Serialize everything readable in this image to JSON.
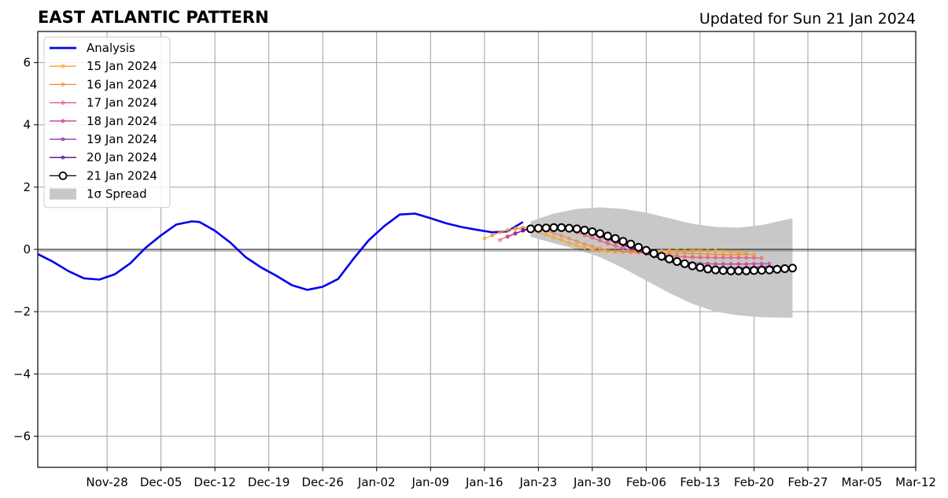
{
  "chart_data": {
    "type": "line",
    "title": "EAST ATLANTIC PATTERN",
    "subtitle": "Updated for Sun 21 Jan 2024",
    "xlabel": "",
    "ylabel": "",
    "x_range": [
      "2023-11-19",
      "2024-03-12"
    ],
    "ylim": [
      -7,
      7
    ],
    "y_ticks": [
      -6,
      -4,
      -2,
      0,
      2,
      4,
      6
    ],
    "y_tick_labels": [
      "−6",
      "−4",
      "−2",
      "0",
      "2",
      "4",
      "6"
    ],
    "x_ticks": [
      "2023-11-28",
      "2023-12-05",
      "2023-12-12",
      "2023-12-19",
      "2023-12-26",
      "2024-01-02",
      "2024-01-09",
      "2024-01-16",
      "2024-01-23",
      "2024-01-30",
      "2024-02-06",
      "2024-02-13",
      "2024-02-20",
      "2024-02-27",
      "2024-03-05",
      "2024-03-12"
    ],
    "x_tick_labels": [
      "Nov-28",
      "Dec-05",
      "Dec-12",
      "Dec-19",
      "Dec-26",
      "Jan-02",
      "Jan-09",
      "Jan-16",
      "Jan-23",
      "Jan-30",
      "Feb-06",
      "Feb-13",
      "Feb-20",
      "Feb-27",
      "Mar-05",
      "Mar-12"
    ],
    "grid": true,
    "zero_line": true,
    "legend_position": "upper-left",
    "series": [
      {
        "name": "Analysis",
        "color": "#0000ee",
        "x": [
          "2023-11-19",
          "2023-11-21",
          "2023-11-23",
          "2023-11-25",
          "2023-11-27",
          "2023-11-29",
          "2023-12-01",
          "2023-12-03",
          "2023-12-05",
          "2023-12-07",
          "2023-12-09",
          "2023-12-10",
          "2023-12-12",
          "2023-12-14",
          "2023-12-16",
          "2023-12-18",
          "2023-12-20",
          "2023-12-22",
          "2023-12-24",
          "2023-12-26",
          "2023-12-28",
          "2023-12-30",
          "2024-01-01",
          "2024-01-03",
          "2024-01-05",
          "2024-01-07",
          "2024-01-09",
          "2024-01-11",
          "2024-01-13",
          "2024-01-15",
          "2024-01-17",
          "2024-01-19",
          "2024-01-21"
        ],
        "y": [
          -0.15,
          -0.4,
          -0.7,
          -0.93,
          -0.97,
          -0.8,
          -0.45,
          0.05,
          0.45,
          0.8,
          0.9,
          0.88,
          0.6,
          0.22,
          -0.25,
          -0.58,
          -0.85,
          -1.15,
          -1.3,
          -1.2,
          -0.95,
          -0.3,
          0.3,
          0.75,
          1.12,
          1.15,
          1.0,
          0.84,
          0.72,
          0.63,
          0.55,
          0.58,
          0.88
        ]
      },
      {
        "name": "15 Jan 2024",
        "color": "#f6a623",
        "x": [
          "2024-01-16",
          "2024-01-17",
          "2024-01-18",
          "2024-01-19",
          "2024-01-20",
          "2024-01-21",
          "2024-01-22",
          "2024-01-23",
          "2024-01-24",
          "2024-01-25",
          "2024-01-26",
          "2024-01-27",
          "2024-01-28",
          "2024-01-29",
          "2024-01-30",
          "2024-01-31",
          "2024-02-01",
          "2024-02-02",
          "2024-02-03",
          "2024-02-04",
          "2024-02-05",
          "2024-02-06",
          "2024-02-07",
          "2024-02-08",
          "2024-02-09",
          "2024-02-10",
          "2024-02-11",
          "2024-02-12",
          "2024-02-13",
          "2024-02-14",
          "2024-02-15",
          "2024-02-16",
          "2024-02-17",
          "2024-02-18",
          "2024-02-19"
        ],
        "y": [
          0.35,
          0.45,
          0.55,
          0.62,
          0.66,
          0.66,
          0.62,
          0.55,
          0.47,
          0.38,
          0.3,
          0.2,
          0.12,
          0.05,
          0.0,
          -0.04,
          -0.06,
          -0.07,
          -0.08,
          -0.08,
          -0.08,
          -0.07,
          -0.06,
          -0.05,
          -0.04,
          -0.03,
          -0.03,
          -0.02,
          -0.02,
          -0.03,
          -0.04,
          -0.06,
          -0.08,
          -0.1,
          -0.12
        ]
      },
      {
        "name": "16 Jan 2024",
        "color": "#f08a3c",
        "x": [
          "2024-01-17",
          "2024-01-18",
          "2024-01-19",
          "2024-01-20",
          "2024-01-21",
          "2024-01-22",
          "2024-01-23",
          "2024-01-24",
          "2024-01-25",
          "2024-01-26",
          "2024-01-27",
          "2024-01-28",
          "2024-01-29",
          "2024-01-30",
          "2024-01-31",
          "2024-02-01",
          "2024-02-02",
          "2024-02-03",
          "2024-02-04",
          "2024-02-05",
          "2024-02-06",
          "2024-02-07",
          "2024-02-08",
          "2024-02-09",
          "2024-02-10",
          "2024-02-11",
          "2024-02-12",
          "2024-02-13",
          "2024-02-14",
          "2024-02-15",
          "2024-02-16",
          "2024-02-17",
          "2024-02-18",
          "2024-02-19",
          "2024-02-20"
        ],
        "y": [
          0.45,
          0.55,
          0.62,
          0.67,
          0.7,
          0.7,
          0.66,
          0.6,
          0.52,
          0.44,
          0.35,
          0.26,
          0.17,
          0.1,
          0.03,
          -0.02,
          -0.06,
          -0.08,
          -0.1,
          -0.11,
          -0.12,
          -0.12,
          -0.12,
          -0.12,
          -0.12,
          -0.12,
          -0.13,
          -0.14,
          -0.15,
          -0.16,
          -0.17,
          -0.17,
          -0.17,
          -0.16,
          -0.16
        ]
      },
      {
        "name": "17 Jan 2024",
        "color": "#e8546a",
        "x": [
          "2024-01-18",
          "2024-01-19",
          "2024-01-20",
          "2024-01-21",
          "2024-01-22",
          "2024-01-23",
          "2024-01-24",
          "2024-01-25",
          "2024-01-26",
          "2024-01-27",
          "2024-01-28",
          "2024-01-29",
          "2024-01-30",
          "2024-01-31",
          "2024-02-01",
          "2024-02-02",
          "2024-02-03",
          "2024-02-04",
          "2024-02-05",
          "2024-02-06",
          "2024-02-07",
          "2024-02-08",
          "2024-02-09",
          "2024-02-10",
          "2024-02-11",
          "2024-02-12",
          "2024-02-13",
          "2024-02-14",
          "2024-02-15",
          "2024-02-16",
          "2024-02-17",
          "2024-02-18",
          "2024-02-19",
          "2024-02-20",
          "2024-02-21"
        ],
        "y": [
          0.3,
          0.42,
          0.52,
          0.6,
          0.66,
          0.7,
          0.72,
          0.72,
          0.68,
          0.62,
          0.55,
          0.46,
          0.37,
          0.28,
          0.19,
          0.11,
          0.04,
          -0.02,
          -0.07,
          -0.11,
          -0.15,
          -0.18,
          -0.2,
          -0.22,
          -0.24,
          -0.25,
          -0.26,
          -0.26,
          -0.27,
          -0.27,
          -0.27,
          -0.27,
          -0.27,
          -0.27,
          -0.28
        ]
      },
      {
        "name": "18 Jan 2024",
        "color": "#c73a8c",
        "x": [
          "2024-01-19",
          "2024-01-20",
          "2024-01-21",
          "2024-01-22",
          "2024-01-23",
          "2024-01-24",
          "2024-01-25",
          "2024-01-26",
          "2024-01-27",
          "2024-01-28",
          "2024-01-29",
          "2024-01-30",
          "2024-01-31",
          "2024-02-01",
          "2024-02-02",
          "2024-02-03",
          "2024-02-04",
          "2024-02-05",
          "2024-02-06",
          "2024-02-07",
          "2024-02-08",
          "2024-02-09",
          "2024-02-10",
          "2024-02-11",
          "2024-02-12",
          "2024-02-13",
          "2024-02-14",
          "2024-02-15",
          "2024-02-16",
          "2024-02-17",
          "2024-02-18",
          "2024-02-19",
          "2024-02-20",
          "2024-02-21",
          "2024-02-22"
        ],
        "y": [
          0.4,
          0.5,
          0.6,
          0.67,
          0.72,
          0.75,
          0.76,
          0.74,
          0.7,
          0.64,
          0.57,
          0.49,
          0.4,
          0.31,
          0.22,
          0.13,
          0.05,
          -0.03,
          -0.11,
          -0.18,
          -0.25,
          -0.31,
          -0.36,
          -0.4,
          -0.43,
          -0.45,
          -0.46,
          -0.47,
          -0.47,
          -0.47,
          -0.47,
          -0.47,
          -0.46,
          -0.46,
          -0.46
        ]
      },
      {
        "name": "19 Jan 2024",
        "color": "#8b1fa3",
        "x": [
          "2024-01-20",
          "2024-01-21",
          "2024-01-22",
          "2024-01-23",
          "2024-01-24",
          "2024-01-25",
          "2024-01-26",
          "2024-01-27",
          "2024-01-28",
          "2024-01-29",
          "2024-01-30",
          "2024-01-31",
          "2024-02-01",
          "2024-02-02",
          "2024-02-03",
          "2024-02-04",
          "2024-02-05",
          "2024-02-06",
          "2024-02-07",
          "2024-02-08",
          "2024-02-09",
          "2024-02-10",
          "2024-02-11",
          "2024-02-12",
          "2024-02-13",
          "2024-02-14",
          "2024-02-15",
          "2024-02-16",
          "2024-02-17",
          "2024-02-18",
          "2024-02-19",
          "2024-02-20",
          "2024-02-21",
          "2024-02-22",
          "2024-02-23"
        ],
        "y": [
          0.52,
          0.6,
          0.66,
          0.71,
          0.74,
          0.75,
          0.74,
          0.71,
          0.66,
          0.6,
          0.53,
          0.45,
          0.36,
          0.27,
          0.18,
          0.09,
          0.0,
          -0.09,
          -0.17,
          -0.25,
          -0.32,
          -0.38,
          -0.44,
          -0.49,
          -0.53,
          -0.56,
          -0.58,
          -0.59,
          -0.59,
          -0.59,
          -0.58,
          -0.57,
          -0.56,
          -0.55,
          -0.55
        ]
      },
      {
        "name": "20 Jan 2024",
        "color": "#4b0c82",
        "x": [
          "2024-01-21",
          "2024-01-22",
          "2024-01-23",
          "2024-01-24",
          "2024-01-25",
          "2024-01-26",
          "2024-01-27",
          "2024-01-28",
          "2024-01-29",
          "2024-01-30",
          "2024-01-31",
          "2024-02-01",
          "2024-02-02",
          "2024-02-03",
          "2024-02-04",
          "2024-02-05",
          "2024-02-06",
          "2024-02-07",
          "2024-02-08",
          "2024-02-09",
          "2024-02-10",
          "2024-02-11",
          "2024-02-12",
          "2024-02-13",
          "2024-02-14",
          "2024-02-15",
          "2024-02-16",
          "2024-02-17",
          "2024-02-18",
          "2024-02-19",
          "2024-02-20",
          "2024-02-21",
          "2024-02-22",
          "2024-02-23",
          "2024-02-24"
        ],
        "y": [
          0.62,
          0.66,
          0.7,
          0.72,
          0.73,
          0.72,
          0.69,
          0.65,
          0.59,
          0.52,
          0.44,
          0.35,
          0.26,
          0.16,
          0.06,
          -0.04,
          -0.14,
          -0.23,
          -0.31,
          -0.39,
          -0.46,
          -0.52,
          -0.57,
          -0.61,
          -0.64,
          -0.66,
          -0.67,
          -0.67,
          -0.67,
          -0.66,
          -0.65,
          -0.64,
          -0.63,
          -0.62,
          -0.61
        ]
      },
      {
        "name": "21 Jan 2024",
        "color": "#000000",
        "x": [
          "2024-01-22",
          "2024-01-23",
          "2024-01-24",
          "2024-01-25",
          "2024-01-26",
          "2024-01-27",
          "2024-01-28",
          "2024-01-29",
          "2024-01-30",
          "2024-01-31",
          "2024-02-01",
          "2024-02-02",
          "2024-02-03",
          "2024-02-04",
          "2024-02-05",
          "2024-02-06",
          "2024-02-07",
          "2024-02-08",
          "2024-02-09",
          "2024-02-10",
          "2024-02-11",
          "2024-02-12",
          "2024-02-13",
          "2024-02-14",
          "2024-02-15",
          "2024-02-16",
          "2024-02-17",
          "2024-02-18",
          "2024-02-19",
          "2024-02-20",
          "2024-02-21",
          "2024-02-22",
          "2024-02-23",
          "2024-02-24",
          "2024-02-25"
        ],
        "y": [
          0.66,
          0.68,
          0.69,
          0.7,
          0.7,
          0.68,
          0.66,
          0.62,
          0.57,
          0.51,
          0.43,
          0.35,
          0.26,
          0.17,
          0.07,
          -0.03,
          -0.13,
          -0.22,
          -0.31,
          -0.39,
          -0.46,
          -0.53,
          -0.58,
          -0.63,
          -0.66,
          -0.68,
          -0.69,
          -0.69,
          -0.69,
          -0.68,
          -0.67,
          -0.66,
          -0.64,
          -0.62,
          -0.6
        ]
      }
    ],
    "spread": {
      "name": "1σ Spread",
      "color": "#c8c8c8",
      "x": [
        "2024-01-22",
        "2024-01-25",
        "2024-01-28",
        "2024-01-31",
        "2024-02-03",
        "2024-02-06",
        "2024-02-09",
        "2024-02-12",
        "2024-02-15",
        "2024-02-18",
        "2024-02-21",
        "2024-02-25"
      ],
      "upper": [
        0.9,
        1.15,
        1.3,
        1.35,
        1.3,
        1.18,
        1.0,
        0.82,
        0.72,
        0.7,
        0.78,
        1.0
      ],
      "lower": [
        0.4,
        0.2,
        0.0,
        -0.25,
        -0.6,
        -1.0,
        -1.4,
        -1.75,
        -2.0,
        -2.12,
        -2.18,
        -2.2
      ]
    }
  }
}
